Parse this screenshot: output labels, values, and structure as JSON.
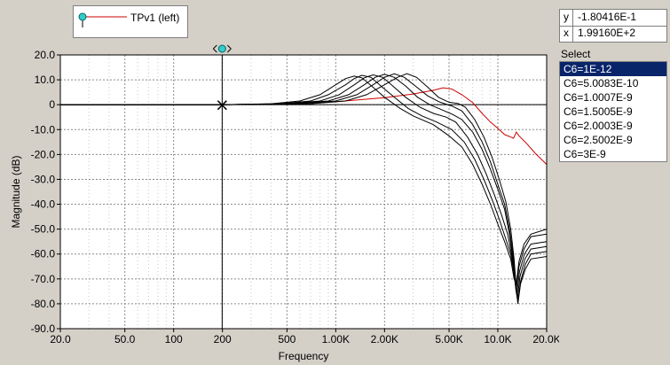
{
  "legend": {
    "series_label": "TPv1 (left)",
    "series_color": "#cc0000",
    "marker_color": "#33cccc"
  },
  "cursor_readout": {
    "y_label": "y",
    "y_value": "-1.80416E-1",
    "x_label": "x",
    "x_value": "1.99160E+2"
  },
  "select_panel": {
    "title": "Select",
    "items": [
      "C6=1E-12",
      "C6=5.0083E-10",
      "C6=1.0007E-9",
      "C6=1.5005E-9",
      "C6=2.0003E-9",
      "C6=2.5002E-9",
      "C6=3E-9"
    ],
    "selected_index": 0
  },
  "chart_data": {
    "type": "line",
    "xlabel": "Frequency",
    "ylabel": "Magnitude  (dB)",
    "x_scale": "log",
    "xlim": [
      20,
      20000
    ],
    "ylim": [
      -90,
      20
    ],
    "grid": true,
    "x_ticks": [
      20,
      50,
      100,
      200,
      500,
      1000,
      2000,
      5000,
      10000,
      20000
    ],
    "x_tick_labels": [
      "20.0",
      "50.0",
      "100",
      "200",
      "500",
      "1.00K",
      "2.00K",
      "5.00K",
      "10.0K",
      "20.0K"
    ],
    "y_ticks": [
      20,
      10,
      0,
      -10,
      -20,
      -30,
      -40,
      -50,
      -60,
      -70,
      -80,
      -90
    ],
    "y_tick_labels": [
      "20.0",
      "10.0",
      "0",
      "-10.0",
      "-20.0",
      "-30.0",
      "-40.0",
      "-50.0",
      "-60.0",
      "-70.0",
      "-80.0",
      "-90.0"
    ],
    "cursor": {
      "x": 199.16,
      "y": -0.180416
    },
    "series": [
      {
        "color": "#cc0000",
        "points": [
          [
            20,
            0
          ],
          [
            100,
            0
          ],
          [
            200,
            0
          ],
          [
            500,
            0.3
          ],
          [
            1000,
            1.2
          ],
          [
            2000,
            2.8
          ],
          [
            3000,
            4.3
          ],
          [
            4000,
            5.8
          ],
          [
            4600,
            6.8
          ],
          [
            5200,
            6.3
          ],
          [
            6000,
            4.0
          ],
          [
            7000,
            0.8
          ],
          [
            8000,
            -3.5
          ],
          [
            9000,
            -7.0
          ],
          [
            10000,
            -9.5
          ],
          [
            11000,
            -12.0
          ],
          [
            12000,
            -13.0
          ],
          [
            12500,
            -13.5
          ],
          [
            13000,
            -11.0
          ],
          [
            13500,
            -12.5
          ],
          [
            15000,
            -15.5
          ],
          [
            17000,
            -19.5
          ],
          [
            20000,
            -24.0
          ]
        ]
      },
      {
        "color": "#000000",
        "points": [
          [
            20,
            0
          ],
          [
            200,
            0
          ],
          [
            400,
            0.4
          ],
          [
            600,
            1.5
          ],
          [
            800,
            4.0
          ],
          [
            1000,
            8.0
          ],
          [
            1150,
            10.5
          ],
          [
            1300,
            11.5
          ],
          [
            1450,
            10.8
          ],
          [
            1700,
            7.0
          ],
          [
            2000,
            3.0
          ],
          [
            2500,
            -1.5
          ],
          [
            3000,
            -4.5
          ],
          [
            4000,
            -8.0
          ],
          [
            5000,
            -12.5
          ],
          [
            6000,
            -17.0
          ],
          [
            7000,
            -24.0
          ],
          [
            8000,
            -32.0
          ],
          [
            9000,
            -40.0
          ],
          [
            10000,
            -48.0
          ],
          [
            11000,
            -55.0
          ],
          [
            12000,
            -62.0
          ],
          [
            12600,
            -70.0
          ],
          [
            13000,
            -72.0
          ],
          [
            13500,
            -63.0
          ],
          [
            14500,
            -56.0
          ],
          [
            16000,
            -52.0
          ],
          [
            20000,
            -50.0
          ]
        ]
      },
      {
        "color": "#000000",
        "points": [
          [
            20,
            0
          ],
          [
            200,
            0
          ],
          [
            450,
            0.4
          ],
          [
            700,
            1.5
          ],
          [
            900,
            4.0
          ],
          [
            1150,
            8.0
          ],
          [
            1300,
            10.5
          ],
          [
            1450,
            11.8
          ],
          [
            1650,
            11.0
          ],
          [
            1900,
            7.5
          ],
          [
            2300,
            3.0
          ],
          [
            2800,
            -1.5
          ],
          [
            3400,
            -4.5
          ],
          [
            4200,
            -7.0
          ],
          [
            5200,
            -10.0
          ],
          [
            6200,
            -15.0
          ],
          [
            7200,
            -22.0
          ],
          [
            8200,
            -30.0
          ],
          [
            9200,
            -38.0
          ],
          [
            10200,
            -46.0
          ],
          [
            11200,
            -54.0
          ],
          [
            12000,
            -60.0
          ],
          [
            12600,
            -68.0
          ],
          [
            13000,
            -74.0
          ],
          [
            13500,
            -65.0
          ],
          [
            14500,
            -58.0
          ],
          [
            16000,
            -53.0
          ],
          [
            20000,
            -52.0
          ]
        ]
      },
      {
        "color": "#000000",
        "points": [
          [
            20,
            0
          ],
          [
            200,
            0
          ],
          [
            500,
            0.4
          ],
          [
            800,
            1.5
          ],
          [
            1050,
            4.0
          ],
          [
            1300,
            8.0
          ],
          [
            1500,
            10.8
          ],
          [
            1700,
            12.0
          ],
          [
            1950,
            11.0
          ],
          [
            2250,
            7.5
          ],
          [
            2700,
            3.0
          ],
          [
            3300,
            -1.0
          ],
          [
            4000,
            -3.5
          ],
          [
            4800,
            -5.0
          ],
          [
            5500,
            -7.0
          ],
          [
            6500,
            -13.0
          ],
          [
            7500,
            -20.0
          ],
          [
            8500,
            -28.0
          ],
          [
            9500,
            -36.0
          ],
          [
            10500,
            -44.0
          ],
          [
            11500,
            -52.0
          ],
          [
            12300,
            -62.0
          ],
          [
            12800,
            -72.0
          ],
          [
            13100,
            -76.0
          ],
          [
            13600,
            -67.0
          ],
          [
            14600,
            -60.0
          ],
          [
            16000,
            -56.0
          ],
          [
            20000,
            -55.0
          ]
        ]
      },
      {
        "color": "#000000",
        "points": [
          [
            20,
            0
          ],
          [
            200,
            0
          ],
          [
            550,
            0.4
          ],
          [
            900,
            1.5
          ],
          [
            1200,
            4.0
          ],
          [
            1500,
            8.0
          ],
          [
            1750,
            11.0
          ],
          [
            2000,
            12.2
          ],
          [
            2300,
            11.0
          ],
          [
            2700,
            7.5
          ],
          [
            3200,
            3.0
          ],
          [
            3800,
            0.0
          ],
          [
            4500,
            -2.0
          ],
          [
            5300,
            -4.0
          ],
          [
            6000,
            -6.0
          ],
          [
            7000,
            -11.0
          ],
          [
            8000,
            -18.0
          ],
          [
            9000,
            -26.0
          ],
          [
            10000,
            -34.0
          ],
          [
            11000,
            -42.0
          ],
          [
            11800,
            -52.0
          ],
          [
            12500,
            -64.0
          ],
          [
            12900,
            -74.0
          ],
          [
            13200,
            -78.0
          ],
          [
            13700,
            -69.0
          ],
          [
            14700,
            -62.0
          ],
          [
            16000,
            -58.0
          ],
          [
            20000,
            -57.0
          ]
        ]
      },
      {
        "color": "#000000",
        "points": [
          [
            20,
            0
          ],
          [
            200,
            0
          ],
          [
            600,
            0.4
          ],
          [
            1000,
            1.5
          ],
          [
            1350,
            4.0
          ],
          [
            1700,
            8.0
          ],
          [
            2000,
            11.0
          ],
          [
            2300,
            12.4
          ],
          [
            2650,
            11.0
          ],
          [
            3100,
            7.5
          ],
          [
            3700,
            3.5
          ],
          [
            4400,
            1.0
          ],
          [
            5200,
            -0.5
          ],
          [
            6000,
            -2.5
          ],
          [
            7000,
            -8.0
          ],
          [
            8000,
            -15.0
          ],
          [
            9000,
            -23.0
          ],
          [
            10000,
            -32.0
          ],
          [
            11000,
            -40.0
          ],
          [
            11800,
            -50.0
          ],
          [
            12500,
            -62.0
          ],
          [
            13000,
            -75.0
          ],
          [
            13300,
            -79.0
          ],
          [
            13800,
            -71.0
          ],
          [
            14800,
            -64.0
          ],
          [
            16000,
            -60.0
          ],
          [
            20000,
            -59.0
          ]
        ]
      },
      {
        "color": "#000000",
        "points": [
          [
            20,
            0
          ],
          [
            200,
            0
          ],
          [
            700,
            0.4
          ],
          [
            1150,
            1.5
          ],
          [
            1550,
            4.0
          ],
          [
            2000,
            8.0
          ],
          [
            2400,
            11.0
          ],
          [
            2750,
            12.5
          ],
          [
            3150,
            11.0
          ],
          [
            3700,
            7.0
          ],
          [
            4300,
            3.0
          ],
          [
            5000,
            1.0
          ],
          [
            5700,
            0.5
          ],
          [
            6300,
            -1.0
          ],
          [
            7200,
            -6.0
          ],
          [
            8200,
            -13.0
          ],
          [
            9200,
            -21.0
          ],
          [
            10200,
            -30.0
          ],
          [
            11200,
            -39.0
          ],
          [
            12000,
            -50.0
          ],
          [
            12600,
            -62.0
          ],
          [
            13000,
            -74.0
          ],
          [
            13300,
            -80.0
          ],
          [
            13800,
            -72.0
          ],
          [
            14800,
            -66.0
          ],
          [
            16000,
            -62.0
          ],
          [
            20000,
            -61.0
          ]
        ]
      }
    ]
  }
}
